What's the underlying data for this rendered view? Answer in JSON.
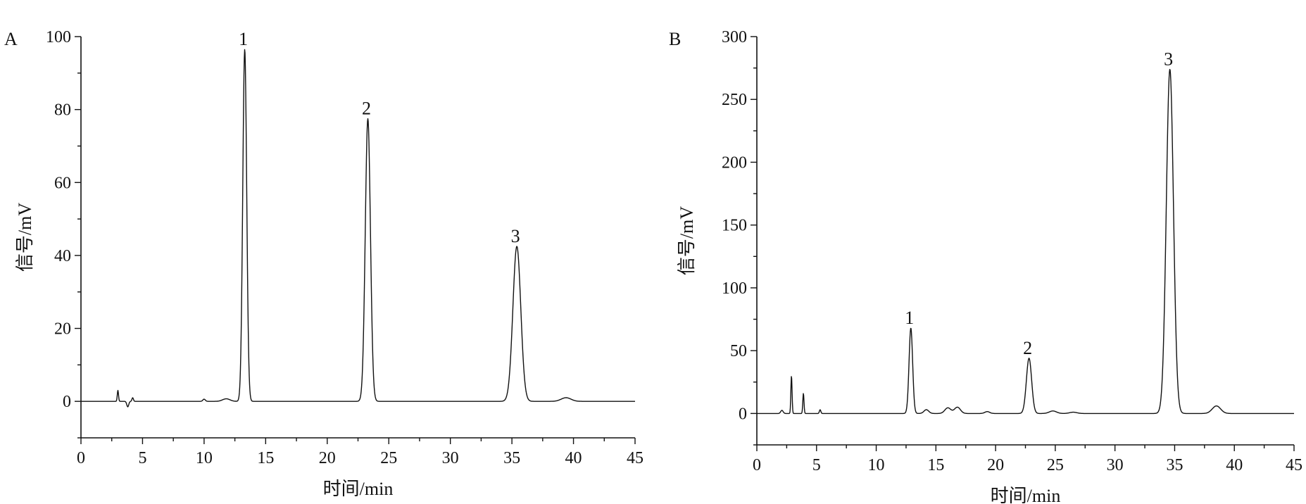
{
  "chart_data": [
    {
      "type": "line",
      "panel_label": "A",
      "xlabel": "时间/min",
      "ylabel": "信号/mV",
      "xlim": [
        0,
        45
      ],
      "ylim": [
        -10,
        100
      ],
      "x_ticks": [
        0,
        5,
        10,
        15,
        20,
        25,
        30,
        35,
        40,
        45
      ],
      "y_ticks": [
        0,
        20,
        40,
        60,
        80,
        100
      ],
      "grid": false,
      "peaks": [
        {
          "label": "1",
          "x": 13.3,
          "y": 96.5,
          "width": 0.16
        },
        {
          "label": "2",
          "x": 23.3,
          "y": 77.5,
          "width": 0.21
        },
        {
          "label": "3",
          "x": 35.4,
          "y": 42.5,
          "width": 0.32
        }
      ],
      "minor_peaks": [
        {
          "x": 3.0,
          "y": 3.0,
          "width": 0.05
        },
        {
          "x": 3.8,
          "y": -1.5,
          "width": 0.08
        },
        {
          "x": 4.2,
          "y": 1.0,
          "width": 0.06
        },
        {
          "x": 10.0,
          "y": 0.6,
          "width": 0.1
        },
        {
          "x": 11.8,
          "y": 0.7,
          "width": 0.3
        },
        {
          "x": 39.4,
          "y": 1.0,
          "width": 0.4
        }
      ]
    },
    {
      "type": "line",
      "panel_label": "B",
      "xlabel": "时间/min",
      "ylabel": "信号/mV",
      "xlim": [
        0,
        45
      ],
      "ylim": [
        -25,
        300
      ],
      "x_ticks": [
        0,
        5,
        10,
        15,
        20,
        25,
        30,
        35,
        40,
        45
      ],
      "y_ticks": [
        0,
        50,
        100,
        150,
        200,
        250,
        300
      ],
      "grid": false,
      "peaks": [
        {
          "label": "1",
          "x": 12.9,
          "y": 68,
          "width": 0.15
        },
        {
          "label": "2",
          "x": 22.8,
          "y": 44,
          "width": 0.22
        },
        {
          "label": "3",
          "x": 34.6,
          "y": 274,
          "width": 0.3
        }
      ],
      "minor_peaks": [
        {
          "x": 2.1,
          "y": 2.5,
          "width": 0.1
        },
        {
          "x": 2.9,
          "y": 30,
          "width": 0.05
        },
        {
          "x": 3.9,
          "y": 16,
          "width": 0.05
        },
        {
          "x": 5.3,
          "y": 3,
          "width": 0.06
        },
        {
          "x": 14.2,
          "y": 3,
          "width": 0.2
        },
        {
          "x": 16.0,
          "y": 4.5,
          "width": 0.25
        },
        {
          "x": 16.8,
          "y": 5,
          "width": 0.25
        },
        {
          "x": 19.3,
          "y": 1.5,
          "width": 0.2
        },
        {
          "x": 24.8,
          "y": 2,
          "width": 0.3
        },
        {
          "x": 26.5,
          "y": 1,
          "width": 0.3
        },
        {
          "x": 38.5,
          "y": 6,
          "width": 0.35
        }
      ]
    }
  ]
}
